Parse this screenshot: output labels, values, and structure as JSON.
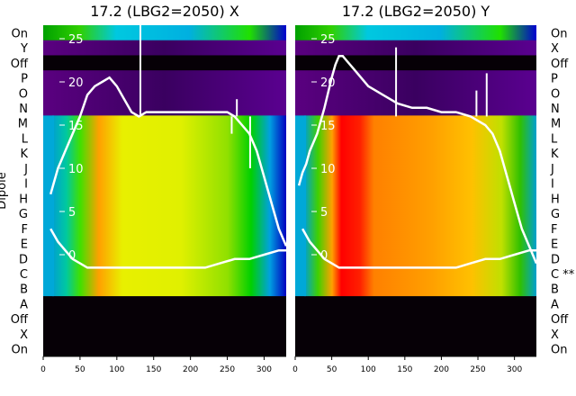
{
  "chart_data": [
    {
      "type": "heatmap",
      "title": "17.2 (LBG2=2050) X",
      "xlabel": "",
      "ylabel": "Dipole",
      "x_ticks": [
        0,
        50,
        100,
        150,
        200,
        250,
        300
      ],
      "xlim": [
        0,
        330
      ],
      "y_ticks": [
        0,
        5,
        10,
        15,
        20,
        25
      ],
      "row_labels": [
        "On",
        "Y",
        "Off",
        "P",
        "O",
        "N",
        "M",
        "L",
        "K",
        "J",
        "I",
        "H",
        "G",
        "F",
        "E",
        "D",
        "C",
        "B",
        "A",
        "Off",
        "X",
        "On"
      ],
      "series": [
        {
          "x": [
            10,
            15,
            20,
            25,
            30,
            40,
            50,
            60,
            70,
            80,
            90,
            100,
            110,
            120,
            130,
            140,
            150,
            160,
            170,
            180,
            190,
            200,
            210,
            220,
            230,
            240,
            250,
            260,
            270,
            280,
            290,
            300,
            310,
            320,
            330
          ],
          "y": [
            7,
            8.5,
            10,
            11,
            12,
            14,
            16,
            18.5,
            19.5,
            20,
            20.5,
            19.5,
            18,
            16.5,
            16,
            16.5,
            16.5,
            16.5,
            16.5,
            16.5,
            16.5,
            16.5,
            16.5,
            16.5,
            16.5,
            16.5,
            16.5,
            16,
            15,
            14,
            12,
            9,
            6,
            3,
            1
          ]
        },
        {
          "x": [
            10,
            20,
            30,
            40,
            50,
            60,
            80,
            100,
            120,
            140,
            160,
            180,
            200,
            220,
            240,
            260,
            280,
            300,
            320,
            330
          ],
          "y": [
            3,
            1.5,
            0.5,
            -0.5,
            -1,
            -1.5,
            -1.5,
            -1.5,
            -1.5,
            -1.5,
            -1.5,
            -1.5,
            -1.5,
            -1.5,
            -1,
            -0.5,
            -0.5,
            0,
            0.5,
            0.5
          ]
        }
      ],
      "spikes": [
        {
          "x": 132,
          "y": 28
        },
        {
          "x": 256,
          "y": 14
        },
        {
          "x": 263,
          "y": 18
        },
        {
          "x": 281,
          "y": 10
        }
      ]
    },
    {
      "type": "heatmap",
      "title": "17.2 (LBG2=2050) Y",
      "xlabel": "",
      "ylabel": "",
      "x_ticks": [
        0,
        50,
        100,
        150,
        200,
        250,
        300
      ],
      "xlim": [
        0,
        330
      ],
      "y_ticks": [
        0,
        5,
        10,
        15,
        20,
        25
      ],
      "row_labels": [
        "On",
        "X",
        "Off",
        "P",
        "O",
        "N",
        "M",
        "L",
        "K",
        "J",
        "I",
        "H",
        "G",
        "F",
        "E",
        "D",
        "C **",
        "B",
        "A",
        "Off",
        "X",
        "On"
      ],
      "series": [
        {
          "x": [
            5,
            10,
            15,
            20,
            30,
            40,
            50,
            55,
            60,
            65,
            70,
            80,
            90,
            100,
            110,
            120,
            130,
            140,
            160,
            180,
            200,
            220,
            240,
            260,
            270,
            280,
            290,
            300,
            310,
            320,
            330
          ],
          "y": [
            8,
            9.5,
            10.5,
            12,
            14,
            17,
            20.5,
            22,
            23,
            23,
            22.5,
            21.5,
            20.5,
            19.5,
            19,
            18.5,
            18,
            17.5,
            17,
            17,
            16.5,
            16.5,
            16,
            15,
            14,
            12,
            9,
            6,
            3,
            1,
            -1
          ]
        },
        {
          "x": [
            10,
            20,
            30,
            40,
            50,
            60,
            80,
            100,
            120,
            140,
            160,
            180,
            200,
            220,
            240,
            260,
            280,
            300,
            320,
            330
          ],
          "y": [
            3,
            1.5,
            0.5,
            -0.5,
            -1,
            -1.5,
            -1.5,
            -1.5,
            -1.5,
            -1.5,
            -1.5,
            -1.5,
            -1.5,
            -1.5,
            -1,
            -0.5,
            -0.5,
            0,
            0.5,
            0.5
          ]
        }
      ],
      "spikes": [
        {
          "x": 138,
          "y": 24
        },
        {
          "x": 248,
          "y": 19
        },
        {
          "x": 262,
          "y": 21
        }
      ]
    }
  ]
}
